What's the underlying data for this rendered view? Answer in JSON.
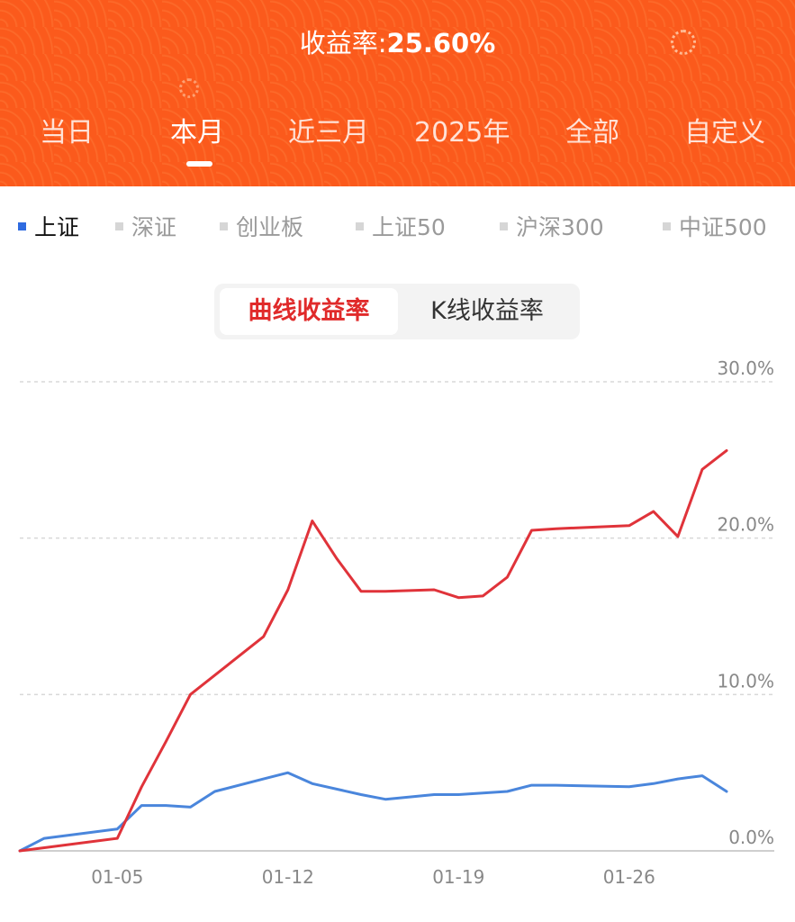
{
  "header": {
    "title_label": "收益率:",
    "title_value": "25.60%",
    "bg_color": "#fb5a1c"
  },
  "tabs": [
    {
      "label": "当日",
      "active": false
    },
    {
      "label": "本月",
      "active": true
    },
    {
      "label": "近三月",
      "active": false
    },
    {
      "label": "2025年",
      "active": false
    },
    {
      "label": "全部",
      "active": false
    },
    {
      "label": "自定义",
      "active": false
    }
  ],
  "indices": [
    {
      "label": "上证",
      "active": true
    },
    {
      "label": "深证",
      "active": false
    },
    {
      "label": "创业板",
      "active": false
    },
    {
      "label": "上证50",
      "active": false
    },
    {
      "label": "沪深300",
      "active": false
    },
    {
      "label": "中证500",
      "active": false
    }
  ],
  "toggle": {
    "curve_label": "曲线收益率",
    "kline_label": "K线收益率",
    "active": "curve"
  },
  "colors": {
    "portfolio": "#e0333a",
    "benchmark": "#4a86dc",
    "grid": "#d8d8d8",
    "axis_text": "#888888"
  },
  "chart_data": {
    "type": "line",
    "x_tick_labels": [
      "01-05",
      "01-12",
      "01-19",
      "01-26"
    ],
    "y_tick_labels": [
      "30.0%",
      "20.0%",
      "10.0%",
      "0.0%"
    ],
    "ylim": [
      0,
      30
    ],
    "grid": true,
    "series": [
      {
        "key": "portfolio",
        "color": "#e0333a",
        "dates": [
          "01-01",
          "01-05",
          "01-06",
          "01-07",
          "01-08",
          "01-11",
          "01-12",
          "01-13",
          "01-14",
          "01-15",
          "01-16",
          "01-18",
          "01-19",
          "01-20",
          "01-21",
          "01-22",
          "01-23",
          "01-26",
          "01-27",
          "01-28",
          "01-29",
          "01-30"
        ],
        "values": [
          0.0,
          0.8,
          4.1,
          7.0,
          10.0,
          13.7,
          16.7,
          21.1,
          18.7,
          16.6,
          16.6,
          16.7,
          16.2,
          16.3,
          17.5,
          20.5,
          20.6,
          20.8,
          21.7,
          20.1,
          24.4,
          25.6
        ]
      },
      {
        "key": "benchmark",
        "color": "#4a86dc",
        "dates": [
          "01-01",
          "01-02",
          "01-05",
          "01-06",
          "01-07",
          "01-08",
          "01-09",
          "01-11",
          "01-12",
          "01-13",
          "01-15",
          "01-16",
          "01-18",
          "01-19",
          "01-20",
          "01-21",
          "01-22",
          "01-23",
          "01-26",
          "01-27",
          "01-28",
          "01-29",
          "01-30"
        ],
        "values": [
          0.0,
          0.8,
          1.4,
          2.9,
          2.9,
          2.8,
          3.8,
          4.6,
          5.0,
          4.3,
          3.6,
          3.3,
          3.6,
          3.6,
          3.7,
          3.8,
          4.2,
          4.2,
          4.1,
          4.3,
          4.6,
          4.8,
          3.8
        ]
      }
    ]
  }
}
